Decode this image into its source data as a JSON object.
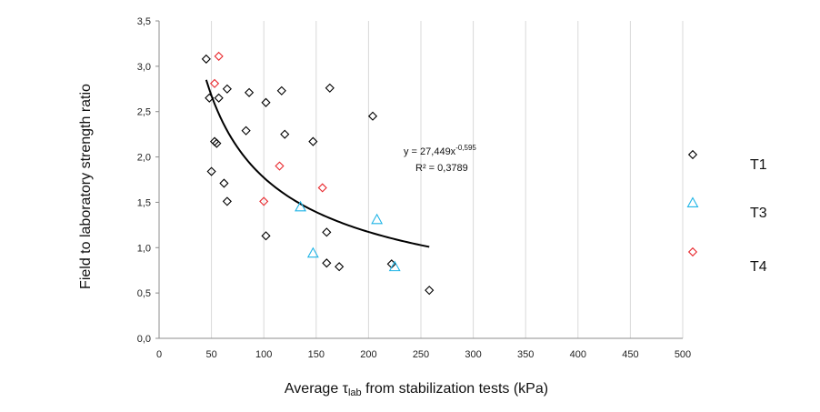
{
  "chart_data": {
    "type": "scatter",
    "title": "",
    "xlabel_main": "Average τ",
    "xlabel_sub": "lab",
    "xlabel_tail": " from stabilization tests (kPa)",
    "ylabel": "Field to laboratory strength ratio",
    "xlim": [
      0,
      500
    ],
    "ylim": [
      0,
      3.5
    ],
    "x_ticks": [
      0,
      50,
      100,
      150,
      200,
      250,
      300,
      350,
      400,
      450,
      500
    ],
    "y_ticks": [
      0,
      0.5,
      1,
      1.5,
      2,
      2.5,
      3,
      3.5
    ],
    "x_tick_labels": [
      "0",
      "50",
      "100",
      "150",
      "200",
      "250",
      "300",
      "350",
      "400",
      "450",
      "500"
    ],
    "y_tick_labels": [
      "0,0",
      "0,5",
      "1,0",
      "1,5",
      "2,0",
      "2,5",
      "3,0",
      "3,5"
    ],
    "grid": "vertical",
    "series": [
      {
        "name": "T1",
        "marker": "diamond",
        "color": "#000000",
        "points": [
          [
            45,
            3.08
          ],
          [
            48,
            2.65
          ],
          [
            50,
            1.84
          ],
          [
            53,
            2.17
          ],
          [
            55,
            2.15
          ],
          [
            57,
            2.65
          ],
          [
            62,
            1.71
          ],
          [
            65,
            1.51
          ],
          [
            65,
            2.75
          ],
          [
            83,
            2.29
          ],
          [
            86,
            2.71
          ],
          [
            102,
            2.6
          ],
          [
            102,
            1.13
          ],
          [
            117,
            2.73
          ],
          [
            120,
            2.25
          ],
          [
            147,
            2.17
          ],
          [
            160,
            1.17
          ],
          [
            160,
            0.83
          ],
          [
            163,
            2.76
          ],
          [
            172,
            0.79
          ],
          [
            204,
            2.45
          ],
          [
            222,
            0.82
          ],
          [
            258,
            0.53
          ]
        ]
      },
      {
        "name": "T3",
        "marker": "triangle",
        "color": "#1EB4E6",
        "points": [
          [
            135,
            1.45
          ],
          [
            147,
            0.94
          ],
          [
            208,
            1.31
          ],
          [
            225,
            0.79
          ]
        ]
      },
      {
        "name": "T4",
        "marker": "diamond",
        "color": "#E8282D",
        "points": [
          [
            53,
            2.81
          ],
          [
            57,
            3.11
          ],
          [
            100,
            1.51
          ],
          [
            115,
            1.9
          ],
          [
            156,
            1.66
          ]
        ]
      }
    ],
    "trendline": {
      "equation_prefix": "y = 27,449x",
      "equation_exponent": "-0,595",
      "r2": "R² = 0,3789",
      "a": 27.449,
      "b": -0.595,
      "x_range": [
        45,
        258
      ],
      "color": "#000000"
    },
    "legend": {
      "placement": "right",
      "items": [
        {
          "label": "T1",
          "marker": "diamond",
          "color": "#000000"
        },
        {
          "label": "T3",
          "marker": "triangle",
          "color": "#1EB4E6"
        },
        {
          "label": "T4",
          "marker": "diamond",
          "color": "#E8282D"
        }
      ]
    }
  }
}
